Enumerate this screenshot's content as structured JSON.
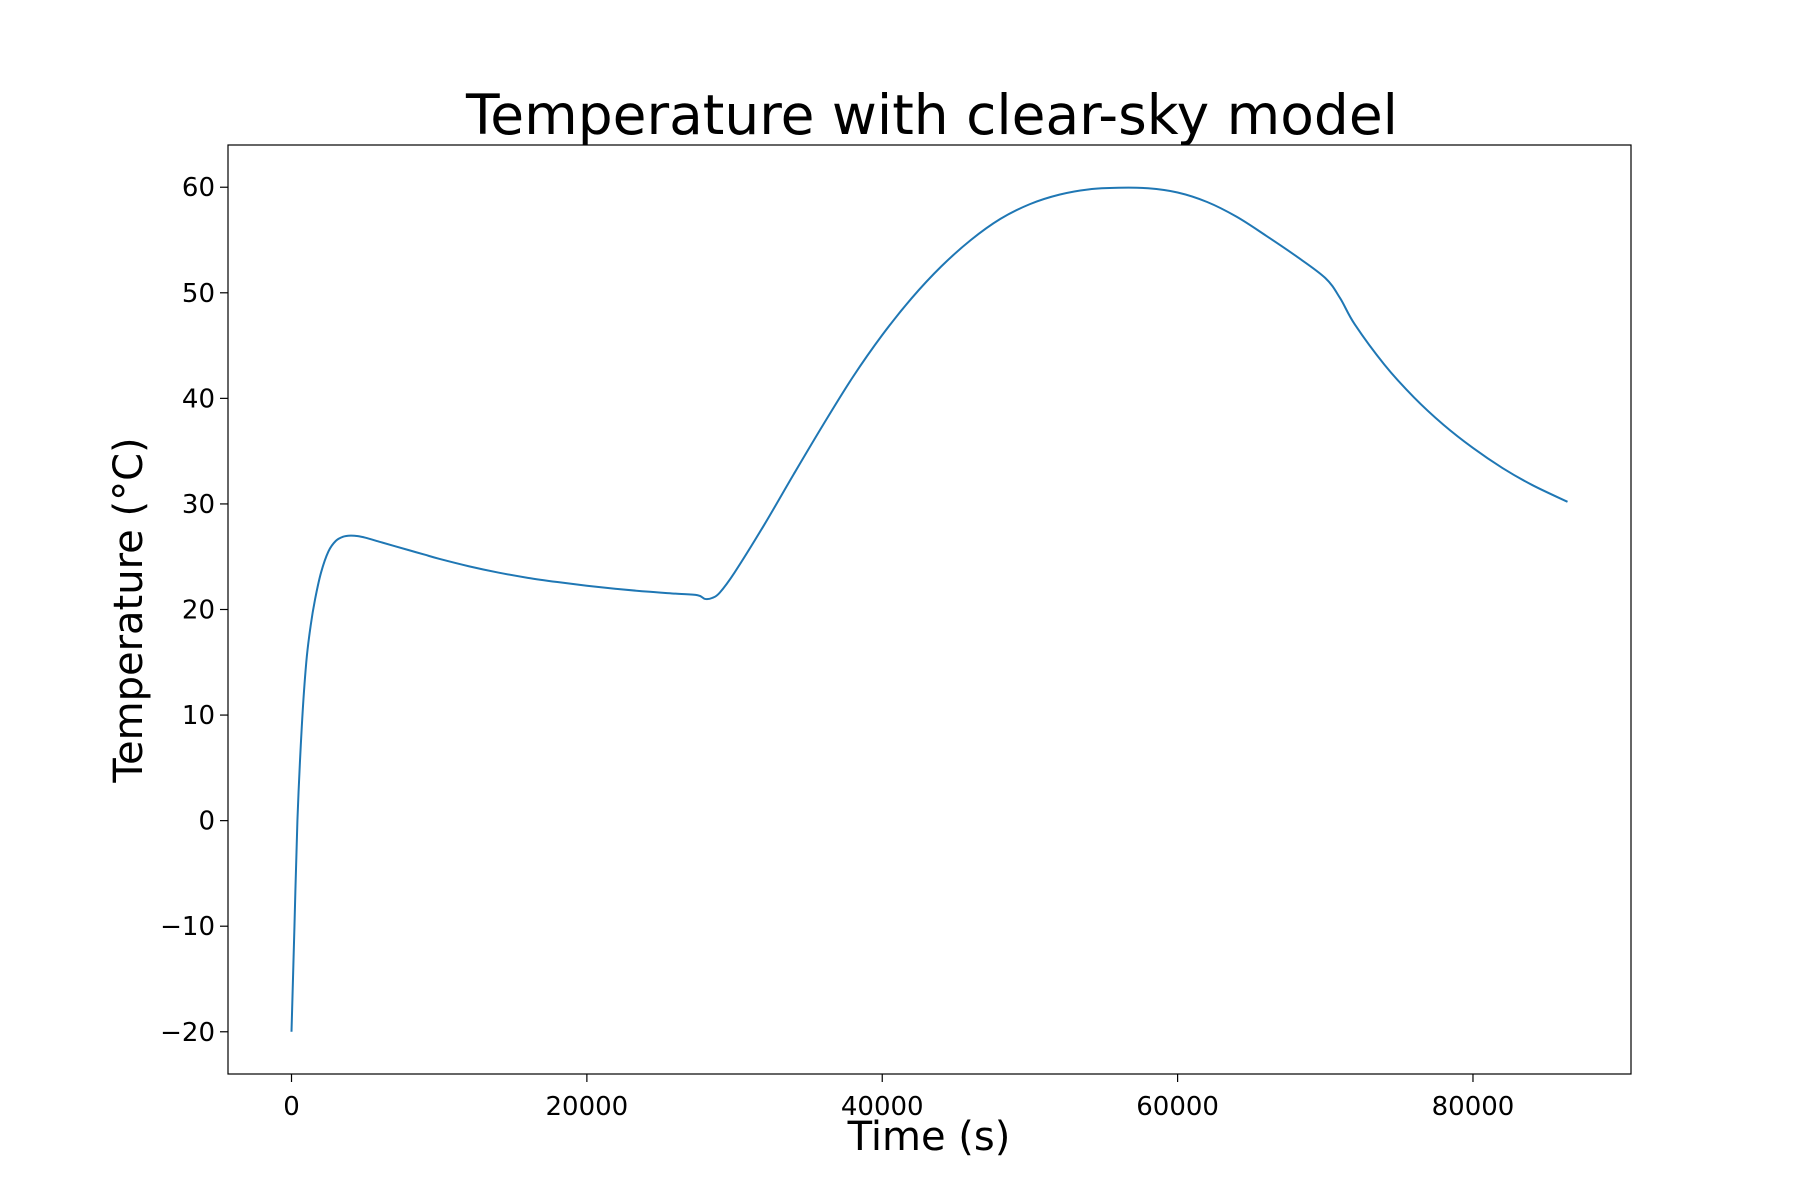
{
  "chart_data": {
    "type": "line",
    "title": "Temperature with clear-sky model",
    "xlabel": "Time (s)",
    "ylabel": "Temperature (°C)",
    "xlim": [
      -4300,
      90700
    ],
    "ylim": [
      -24,
      64
    ],
    "xticks": [
      0,
      20000,
      40000,
      60000,
      80000
    ],
    "xtick_labels": [
      "0",
      "20000",
      "40000",
      "60000",
      "80000"
    ],
    "yticks": [
      -20,
      -10,
      0,
      10,
      20,
      30,
      40,
      50,
      60
    ],
    "ytick_labels": [
      "−20",
      "−10",
      "0",
      "10",
      "20",
      "30",
      "40",
      "50",
      "60"
    ],
    "grid": false,
    "color": "#1f77b4",
    "series": [
      {
        "x": [
          0,
          200,
          400,
          700,
          1000,
          1300,
          1600,
          2000,
          2500,
          3000,
          3500,
          4000,
          4500,
          5000,
          6000,
          7000,
          8000,
          9000,
          10000,
          12000,
          14000,
          16000,
          18000,
          20000,
          22000,
          24000,
          26000,
          27500,
          28000,
          28500,
          29000,
          30000,
          32000,
          34000,
          36000,
          38000,
          40000,
          42000,
          44000,
          46000,
          48000,
          50000,
          52000,
          54000,
          56000,
          58000,
          60000,
          62000,
          64000,
          66000,
          68000,
          70000,
          71000,
          72000,
          74000,
          76000,
          78000,
          80000,
          82000,
          84000,
          86400
        ],
        "y": [
          -20,
          -10,
          0,
          9,
          15,
          18.5,
          21,
          23.5,
          25.5,
          26.5,
          26.9,
          27,
          26.95,
          26.8,
          26.4,
          26.0,
          25.6,
          25.2,
          24.8,
          24.1,
          23.5,
          23.0,
          22.6,
          22.25,
          21.95,
          21.7,
          21.5,
          21.35,
          21.0,
          21.1,
          21.6,
          23.5,
          28.0,
          32.8,
          37.5,
          42.0,
          46.0,
          49.5,
          52.5,
          55.0,
          57.0,
          58.4,
          59.3,
          59.8,
          59.95,
          59.9,
          59.5,
          58.6,
          57.2,
          55.4,
          53.5,
          51.4,
          49.5,
          47.0,
          43.2,
          40.1,
          37.5,
          35.3,
          33.4,
          31.8,
          30.2
        ]
      }
    ]
  }
}
